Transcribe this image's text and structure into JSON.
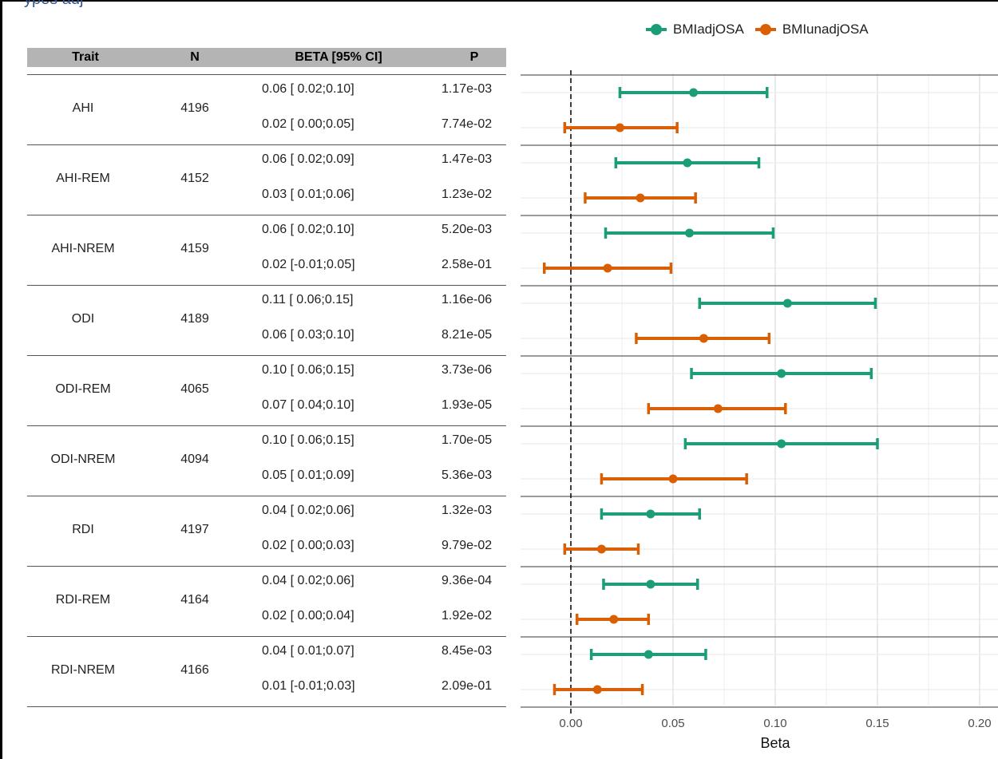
{
  "top_fragment": "ypes adj",
  "legend": {
    "items": [
      {
        "label": "BMIadjOSA",
        "color": "#1b9e77"
      },
      {
        "label": "BMIunadjOSA",
        "color": "#d95f02"
      }
    ]
  },
  "table": {
    "headers": {
      "trait": "Trait",
      "n": "N",
      "beta": "BETA [95% CI]",
      "p": "P"
    },
    "rows": [
      {
        "trait": "AHI",
        "n": "4196",
        "adj": {
          "beta": "0.06 [ 0.02;0.10]",
          "p": "1.17e-03"
        },
        "unadj": {
          "beta": "0.02 [ 0.00;0.05]",
          "p": "7.74e-02"
        }
      },
      {
        "trait": "AHI-REM",
        "n": "4152",
        "adj": {
          "beta": "0.06 [ 0.02;0.09]",
          "p": "1.47e-03"
        },
        "unadj": {
          "beta": "0.03 [ 0.01;0.06]",
          "p": "1.23e-02"
        }
      },
      {
        "trait": "AHI-NREM",
        "n": "4159",
        "adj": {
          "beta": "0.06 [ 0.02;0.10]",
          "p": "5.20e-03"
        },
        "unadj": {
          "beta": "0.02 [-0.01;0.05]",
          "p": "2.58e-01"
        }
      },
      {
        "trait": "ODI",
        "n": "4189",
        "adj": {
          "beta": "0.11 [ 0.06;0.15]",
          "p": "1.16e-06"
        },
        "unadj": {
          "beta": "0.06 [ 0.03;0.10]",
          "p": "8.21e-05"
        }
      },
      {
        "trait": "ODI-REM",
        "n": "4065",
        "adj": {
          "beta": "0.10 [ 0.06;0.15]",
          "p": "3.73e-06"
        },
        "unadj": {
          "beta": "0.07 [ 0.04;0.10]",
          "p": "1.93e-05"
        }
      },
      {
        "trait": "ODI-NREM",
        "n": "4094",
        "adj": {
          "beta": "0.10 [ 0.06;0.15]",
          "p": "1.70e-05"
        },
        "unadj": {
          "beta": "0.05 [ 0.01;0.09]",
          "p": "5.36e-03"
        }
      },
      {
        "trait": "RDI",
        "n": "4197",
        "adj": {
          "beta": "0.04 [ 0.02;0.06]",
          "p": "1.32e-03"
        },
        "unadj": {
          "beta": "0.02 [ 0.00;0.03]",
          "p": "9.79e-02"
        }
      },
      {
        "trait": "RDI-REM",
        "n": "4164",
        "adj": {
          "beta": "0.04 [ 0.02;0.06]",
          "p": "9.36e-04"
        },
        "unadj": {
          "beta": "0.02 [ 0.00;0.04]",
          "p": "1.92e-02"
        }
      },
      {
        "trait": "RDI-NREM",
        "n": "4166",
        "adj": {
          "beta": "0.04 [ 0.01;0.07]",
          "p": "8.45e-03"
        },
        "unadj": {
          "beta": "0.01 [-0.01;0.03]",
          "p": "2.09e-01"
        }
      }
    ]
  },
  "chart_data": {
    "type": "scatter",
    "subtype": "forest",
    "xlabel": "Beta",
    "xlim": [
      -0.013,
      0.205
    ],
    "xticks": [
      0.0,
      0.05,
      0.1,
      0.15,
      0.2
    ],
    "xtick_labels": [
      "0.00",
      "0.05",
      "0.10",
      "0.15",
      "0.20"
    ],
    "reference_line": {
      "x": 0,
      "style": "dashed"
    },
    "grid": true,
    "legend_position": "top",
    "categories": [
      "AHI",
      "AHI-REM",
      "AHI-NREM",
      "ODI",
      "ODI-REM",
      "ODI-NREM",
      "RDI",
      "RDI-REM",
      "RDI-NREM"
    ],
    "series": [
      {
        "name": "BMIadjOSA",
        "color": "#1b9e77",
        "points": [
          {
            "est": 0.06,
            "lo": 0.024,
            "hi": 0.096
          },
          {
            "est": 0.057,
            "lo": 0.022,
            "hi": 0.092
          },
          {
            "est": 0.058,
            "lo": 0.017,
            "hi": 0.099
          },
          {
            "est": 0.106,
            "lo": 0.063,
            "hi": 0.149
          },
          {
            "est": 0.103,
            "lo": 0.059,
            "hi": 0.147
          },
          {
            "est": 0.103,
            "lo": 0.056,
            "hi": 0.15
          },
          {
            "est": 0.039,
            "lo": 0.015,
            "hi": 0.063
          },
          {
            "est": 0.039,
            "lo": 0.016,
            "hi": 0.062
          },
          {
            "est": 0.038,
            "lo": 0.01,
            "hi": 0.066
          }
        ]
      },
      {
        "name": "BMIunadjOSA",
        "color": "#d95f02",
        "points": [
          {
            "est": 0.024,
            "lo": -0.003,
            "hi": 0.052
          },
          {
            "est": 0.034,
            "lo": 0.007,
            "hi": 0.061
          },
          {
            "est": 0.018,
            "lo": -0.013,
            "hi": 0.049
          },
          {
            "est": 0.065,
            "lo": 0.032,
            "hi": 0.097
          },
          {
            "est": 0.072,
            "lo": 0.038,
            "hi": 0.105
          },
          {
            "est": 0.05,
            "lo": 0.015,
            "hi": 0.086
          },
          {
            "est": 0.015,
            "lo": -0.003,
            "hi": 0.033
          },
          {
            "est": 0.021,
            "lo": 0.003,
            "hi": 0.038
          },
          {
            "est": 0.013,
            "lo": -0.008,
            "hi": 0.035
          }
        ]
      }
    ]
  }
}
